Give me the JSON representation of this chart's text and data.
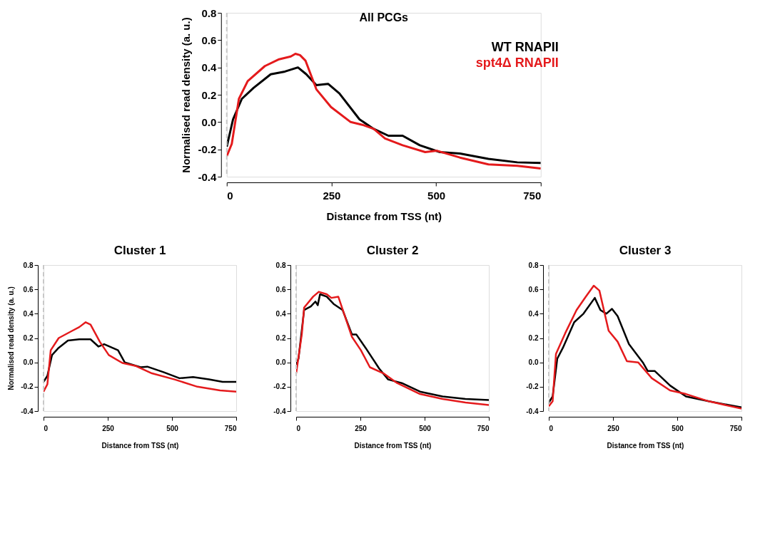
{
  "chart_data": [
    {
      "type": "line",
      "title": "All PCGs",
      "xlabel": "Distance from TSS (nt)",
      "ylabel": "Normalised read density (a. u.)",
      "xlim": [
        0,
        750
      ],
      "ylim": [
        -0.4,
        0.8
      ],
      "xticks": [
        0,
        250,
        500,
        750
      ],
      "yticks": [
        {
          "value": 0.8,
          "label": "0.8"
        },
        {
          "value": 0.6,
          "label": "0.6"
        },
        {
          "value": 0.4,
          "label": "0.4"
        },
        {
          "value": 0.2,
          "label": "0.2"
        },
        {
          "value": 0,
          "label": "0.0"
        },
        {
          "value": -0.2,
          "label": "-0.2"
        },
        {
          "value": -0.4,
          "label": "-0.4"
        }
      ],
      "grid": false,
      "legend": "top right",
      "marker": "none",
      "line_style": "solid",
      "ref_lines": [
        {
          "axis": "x",
          "value": 0,
          "color": "#c8c8c8",
          "line_style": "dashed"
        }
      ],
      "series": [
        {
          "name": "WT RNAPII",
          "color": "#000000",
          "x": [
            0,
            15,
            36,
            64,
            105,
            139,
            170,
            190,
            214,
            242,
            269,
            317,
            351,
            386,
            420,
            461,
            509,
            557,
            625,
            694,
            750
          ],
          "values": [
            -0.18,
            0.02,
            0.17,
            0.25,
            0.35,
            0.37,
            0.4,
            0.35,
            0.27,
            0.28,
            0.21,
            0.02,
            -0.05,
            -0.1,
            -0.1,
            -0.17,
            -0.22,
            -0.23,
            -0.27,
            -0.295,
            -0.3
          ]
        },
        {
          "name": "spt4Δ RNAPII",
          "color": "#e41a1c",
          "x": [
            0,
            12,
            29,
            50,
            91,
            125,
            153,
            164,
            175,
            188,
            214,
            249,
            296,
            324,
            351,
            378,
            420,
            474,
            502,
            557,
            625,
            694,
            750
          ],
          "values": [
            -0.25,
            -0.16,
            0.17,
            0.3,
            0.41,
            0.46,
            0.48,
            0.5,
            0.49,
            0.45,
            0.24,
            0.11,
            0.0,
            -0.02,
            -0.05,
            -0.12,
            -0.17,
            -0.22,
            -0.21,
            -0.26,
            -0.31,
            -0.32,
            -0.34
          ]
        }
      ]
    },
    {
      "type": "line",
      "title": "Cluster 1",
      "xlabel": "Distance from TSS (nt)",
      "ylabel": "Normalised read density (a. u.)",
      "xlim": [
        0,
        750
      ],
      "ylim": [
        -0.4,
        0.8
      ],
      "xticks": [
        0,
        250,
        500,
        750
      ],
      "yticks": [
        {
          "value": 0.8,
          "label": "0.8"
        },
        {
          "value": 0.6,
          "label": "0.6"
        },
        {
          "value": 0.4,
          "label": "0.4"
        },
        {
          "value": 0.2,
          "label": "0.2"
        },
        {
          "value": 0,
          "label": "0.0"
        },
        {
          "value": -0.2,
          "label": "-0.2"
        },
        {
          "value": -0.4,
          "label": "-0.4"
        }
      ],
      "grid": false,
      "marker": "none",
      "line_style": "solid",
      "ref_lines": [
        {
          "axis": "x",
          "value": 0,
          "color": "#c8c8c8",
          "line_style": "dashed"
        }
      ],
      "series": [
        {
          "color": "#000000",
          "x": [
            0,
            15,
            33,
            59,
            95,
            139,
            183,
            214,
            236,
            290,
            316,
            378,
            404,
            467,
            529,
            582,
            644,
            697,
            750
          ],
          "values": [
            -0.16,
            -0.11,
            0.06,
            0.12,
            0.18,
            0.19,
            0.19,
            0.13,
            0.15,
            0.1,
            0.0,
            -0.04,
            -0.035,
            -0.08,
            -0.13,
            -0.12,
            -0.14,
            -0.16,
            -0.16
          ]
        },
        {
          "color": "#e41a1c",
          "x": [
            0,
            15,
            28,
            59,
            112,
            139,
            164,
            183,
            219,
            254,
            307,
            360,
            422,
            510,
            599,
            687,
            750
          ],
          "values": [
            -0.24,
            -0.18,
            0.1,
            0.2,
            0.26,
            0.29,
            0.33,
            0.31,
            0.17,
            0.06,
            -0.005,
            -0.03,
            -0.09,
            -0.14,
            -0.2,
            -0.23,
            -0.24
          ]
        }
      ]
    },
    {
      "type": "line",
      "title": "Cluster 2",
      "xlabel": "Distance from TSS (nt)",
      "xlim": [
        0,
        750
      ],
      "ylim": [
        -0.4,
        0.8
      ],
      "xticks": [
        0,
        250,
        500,
        750
      ],
      "yticks": [
        {
          "value": 0.8,
          "label": "0.8"
        },
        {
          "value": 0.6,
          "label": "0.6"
        },
        {
          "value": 0.4,
          "label": "0.4"
        },
        {
          "value": 0.2,
          "label": "0.2"
        },
        {
          "value": 0,
          "label": "0.0"
        },
        {
          "value": -0.2,
          "label": "-0.2"
        },
        {
          "value": -0.4,
          "label": "-0.4"
        }
      ],
      "grid": false,
      "marker": "none",
      "line_style": "solid",
      "ref_lines": [
        {
          "axis": "x",
          "value": 0,
          "color": "#c8c8c8",
          "line_style": "dashed"
        }
      ],
      "series": [
        {
          "color": "#000000",
          "x": [
            0,
            9,
            31,
            57,
            75,
            84,
            93,
            119,
            146,
            181,
            217,
            234,
            270,
            323,
            358,
            411,
            482,
            570,
            659,
            750
          ],
          "values": [
            -0.02,
            0.03,
            0.43,
            0.46,
            0.5,
            0.47,
            0.56,
            0.54,
            0.48,
            0.43,
            0.23,
            0.23,
            0.12,
            -0.05,
            -0.14,
            -0.17,
            -0.24,
            -0.28,
            -0.3,
            -0.31
          ]
        },
        {
          "color": "#e41a1c",
          "x": [
            0,
            22,
            31,
            66,
            88,
            119,
            137,
            164,
            217,
            252,
            287,
            340,
            393,
            482,
            570,
            659,
            750
          ],
          "values": [
            -0.09,
            0.23,
            0.45,
            0.54,
            0.58,
            0.56,
            0.53,
            0.54,
            0.21,
            0.1,
            -0.04,
            -0.09,
            -0.17,
            -0.26,
            -0.3,
            -0.33,
            -0.35
          ]
        }
      ]
    },
    {
      "type": "line",
      "title": "Cluster 3",
      "xlabel": "Distance from TSS (nt)",
      "xlim": [
        0,
        750
      ],
      "ylim": [
        -0.4,
        0.8
      ],
      "xticks": [
        0,
        250,
        500,
        750
      ],
      "yticks": [
        {
          "value": 0.8,
          "label": "0.8"
        },
        {
          "value": 0.6,
          "label": "0.6"
        },
        {
          "value": 0.4,
          "label": "0.4"
        },
        {
          "value": 0.2,
          "label": "0.2"
        },
        {
          "value": 0,
          "label": "0.0"
        },
        {
          "value": -0.2,
          "label": "-0.2"
        },
        {
          "value": -0.4,
          "label": "-0.4"
        }
      ],
      "grid": false,
      "marker": "none",
      "line_style": "solid",
      "ref_lines": [
        {
          "axis": "x",
          "value": 0,
          "color": "#c8c8c8",
          "line_style": "dashed"
        }
      ],
      "series": [
        {
          "color": "#000000",
          "x": [
            0,
            15,
            33,
            55,
            99,
            135,
            179,
            201,
            224,
            246,
            268,
            312,
            366,
            385,
            412,
            472,
            534,
            623,
            750
          ],
          "values": [
            -0.33,
            -0.28,
            0.03,
            0.12,
            0.33,
            0.4,
            0.53,
            0.43,
            0.4,
            0.44,
            0.38,
            0.15,
            0.0,
            -0.07,
            -0.07,
            -0.19,
            -0.28,
            -0.32,
            -0.37
          ]
        },
        {
          "color": "#e41a1c",
          "x": [
            0,
            15,
            28,
            64,
            108,
            144,
            175,
            197,
            233,
            268,
            304,
            348,
            401,
            472,
            534,
            623,
            750
          ],
          "values": [
            -0.36,
            -0.32,
            0.07,
            0.24,
            0.43,
            0.54,
            0.63,
            0.59,
            0.26,
            0.17,
            0.01,
            0.0,
            -0.13,
            -0.23,
            -0.26,
            -0.32,
            -0.38
          ]
        }
      ]
    }
  ]
}
